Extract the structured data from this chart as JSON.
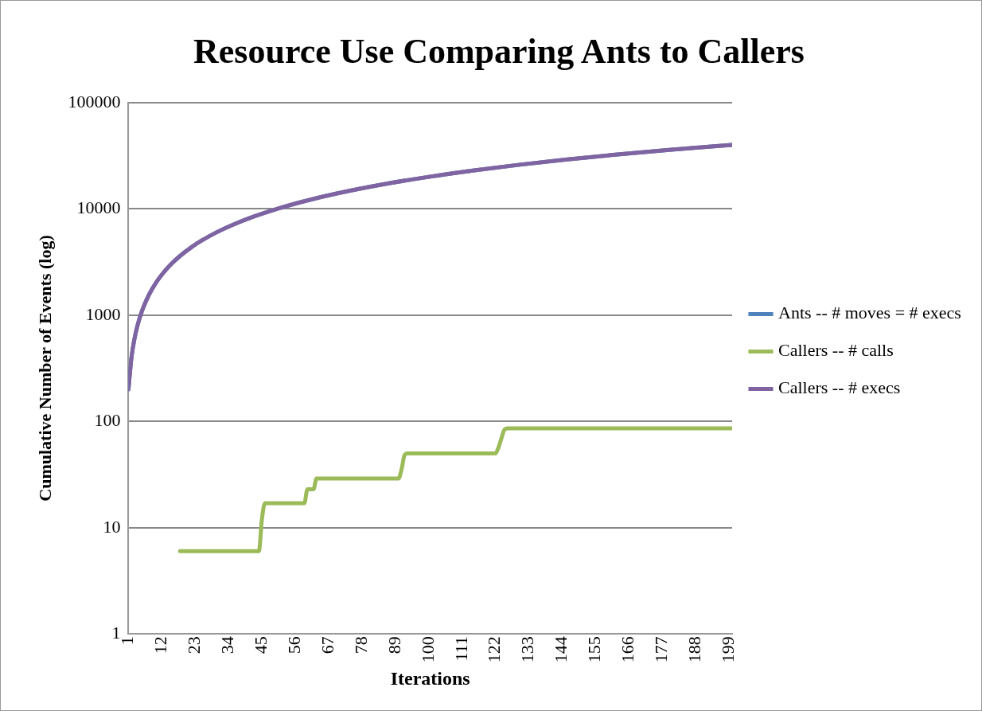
{
  "chart_data": {
    "type": "line",
    "title": "Resource Use Comparing Ants to Callers",
    "xlabel": "Iterations",
    "ylabel": "Cumulative Number of Events (log)",
    "xlim": [
      1,
      200
    ],
    "xticks": [
      1,
      12,
      23,
      34,
      45,
      56,
      67,
      78,
      89,
      100,
      111,
      122,
      133,
      144,
      155,
      166,
      177,
      188,
      199
    ],
    "ylim": [
      1,
      100000
    ],
    "yticks": [
      1,
      10,
      100,
      1000,
      10000,
      100000
    ],
    "log": "y",
    "grid": "y",
    "legend": "right",
    "marker": "none",
    "line_style": "solid",
    "series": [
      {
        "name": "Ants -- # moves = # execs",
        "color": "#4f81bd",
        "x": [
          1,
          2,
          3,
          4,
          5,
          6,
          8,
          10,
          12,
          15,
          18,
          22,
          25,
          30,
          35,
          42,
          50,
          60,
          70,
          85,
          100,
          115,
          130,
          145,
          160,
          180,
          200
        ],
        "values": [
          200,
          400,
          600,
          800,
          1000,
          1200,
          1600,
          2000,
          2400,
          3000,
          3600,
          4400,
          5000,
          6000,
          7000,
          8400,
          10000,
          12000,
          14000,
          17000,
          20000,
          23000,
          26000,
          29000,
          32000,
          36000,
          40000
        ]
      },
      {
        "name": "Callers -- # calls",
        "color": "#9bbb59",
        "x": [
          18,
          44,
          45,
          46,
          59,
          60,
          61,
          62,
          63,
          90,
          91,
          92,
          93,
          122,
          123,
          124,
          125,
          126,
          200
        ],
        "values": [
          6,
          6,
          12,
          17,
          17,
          23,
          23,
          23,
          29,
          29,
          35,
          48,
          50,
          50,
          57,
          70,
          84,
          86,
          86
        ]
      },
      {
        "name": "Callers -- # execs",
        "color": "#8064a2",
        "x": [
          1,
          2,
          3,
          4,
          5,
          6,
          8,
          10,
          12,
          15,
          18,
          22,
          25,
          30,
          35,
          42,
          50,
          60,
          70,
          85,
          100,
          115,
          130,
          145,
          160,
          180,
          200
        ],
        "values": [
          200,
          400,
          600,
          800,
          1000,
          1200,
          1600,
          2000,
          2400,
          3000,
          3600,
          4400,
          5000,
          6000,
          7000,
          8400,
          10000,
          12000,
          14000,
          17000,
          20000,
          23000,
          26000,
          29000,
          32000,
          36000,
          40000
        ]
      }
    ]
  }
}
